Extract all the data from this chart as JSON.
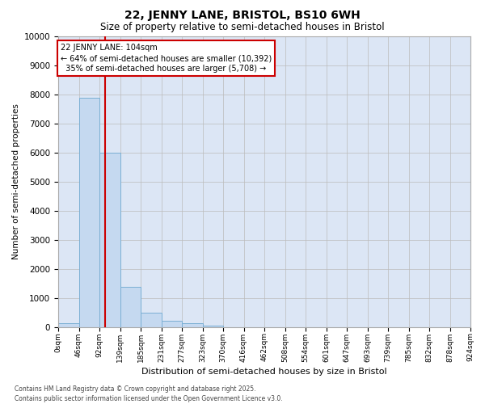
{
  "title": "22, JENNY LANE, BRISTOL, BS10 6WH",
  "subtitle": "Size of property relative to semi-detached houses in Bristol",
  "xlabel": "Distribution of semi-detached houses by size in Bristol",
  "ylabel": "Number of semi-detached properties",
  "bin_labels": [
    "0sqm",
    "46sqm",
    "92sqm",
    "139sqm",
    "185sqm",
    "231sqm",
    "277sqm",
    "323sqm",
    "370sqm",
    "416sqm",
    "462sqm",
    "508sqm",
    "554sqm",
    "601sqm",
    "647sqm",
    "693sqm",
    "739sqm",
    "785sqm",
    "832sqm",
    "878sqm",
    "924sqm"
  ],
  "bar_values": [
    150,
    7900,
    6000,
    1380,
    490,
    230,
    130,
    60,
    0,
    0,
    0,
    0,
    0,
    0,
    0,
    0,
    0,
    0,
    0,
    0
  ],
  "bar_color": "#c5d9f0",
  "bar_edge_color": "#7bafd4",
  "grid_color": "#bbbbbb",
  "bg_color": "#dce6f5",
  "vline_color": "#cc0000",
  "annotation_line1": "22 JENNY LANE: 104sqm",
  "annotation_line2": "← 64% of semi-detached houses are smaller (10,392)",
  "annotation_line3": "  35% of semi-detached houses are larger (5,708) →",
  "ylim": [
    0,
    10000
  ],
  "yticks": [
    0,
    1000,
    2000,
    3000,
    4000,
    5000,
    6000,
    7000,
    8000,
    9000,
    10000
  ],
  "footnote": "Contains HM Land Registry data © Crown copyright and database right 2025.\nContains public sector information licensed under the Open Government Licence v3.0.",
  "bin_width": 46,
  "property_size": 104,
  "n_bars": 20
}
